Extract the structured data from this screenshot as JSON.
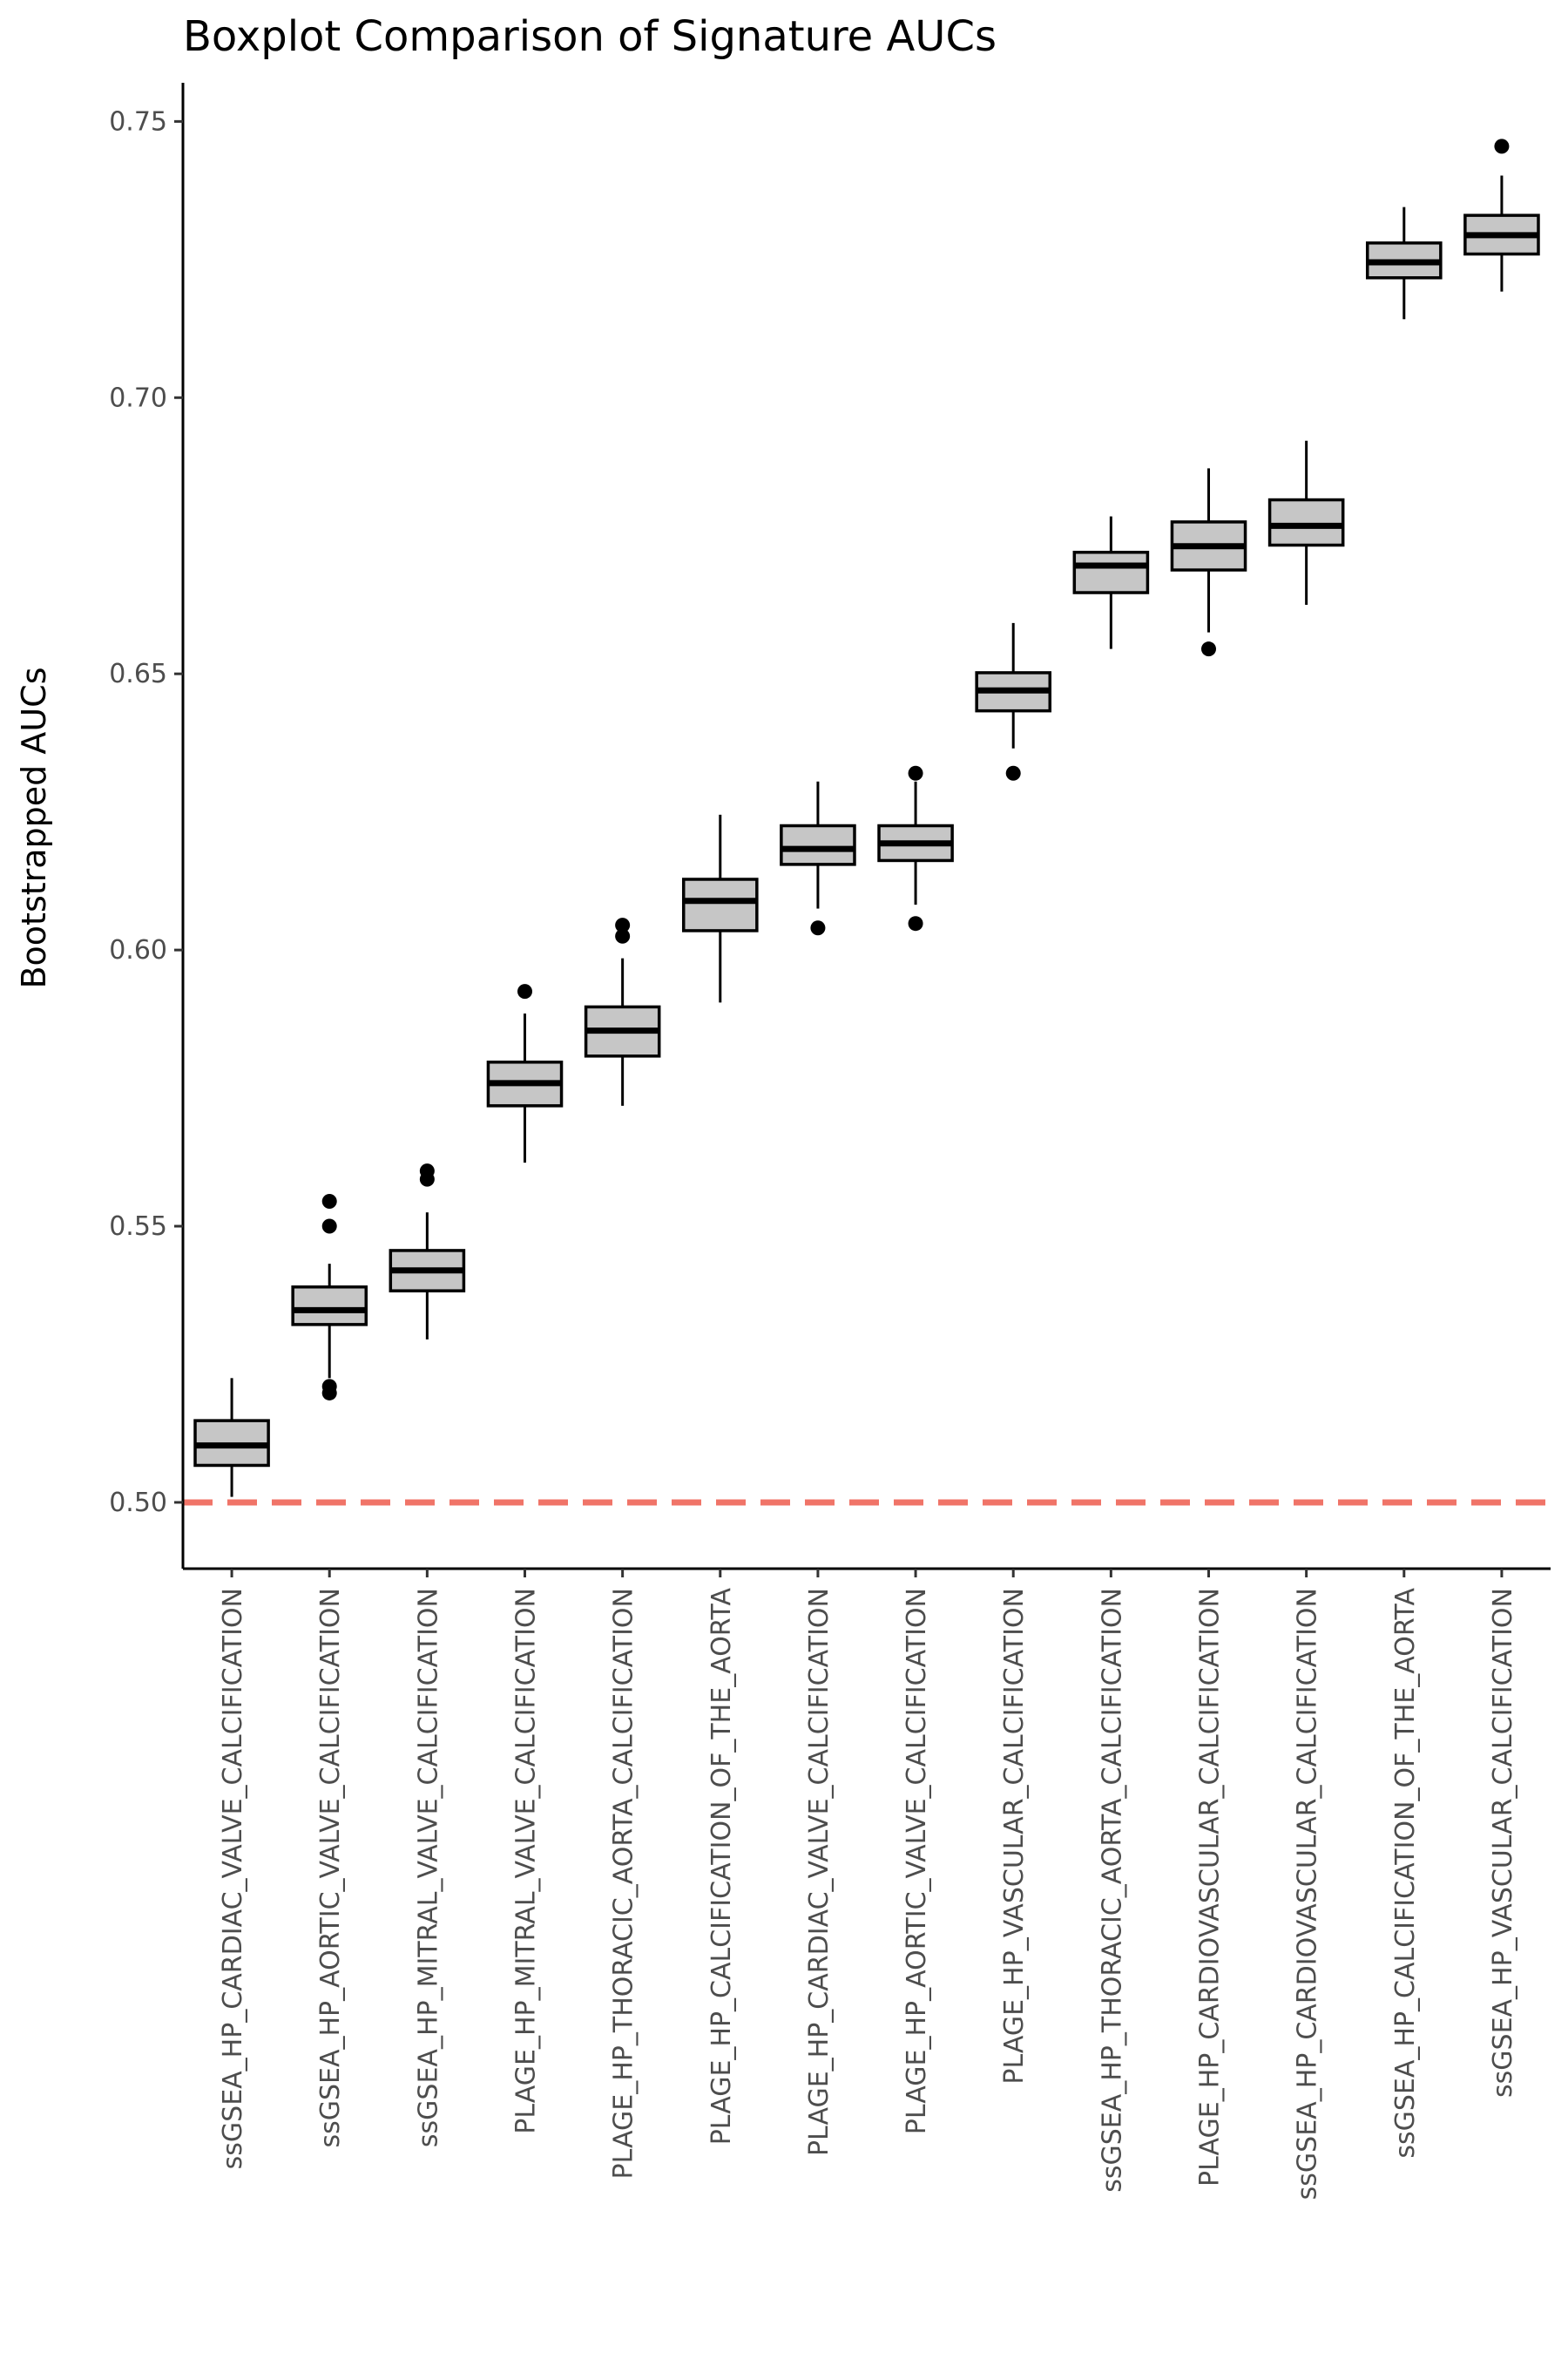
{
  "chart_data": {
    "type": "boxplot",
    "title": "Boxplot Comparison of Signature AUCs",
    "xlabel": "",
    "ylabel": "Bootstrapped AUCs",
    "ylim": [
      0.488,
      0.757
    ],
    "yticks": [
      0.5,
      0.55,
      0.6,
      0.65,
      0.7,
      0.75
    ],
    "ytick_labels": [
      "0.50",
      "0.55",
      "0.60",
      "0.65",
      "0.70",
      "0.75"
    ],
    "grid": false,
    "legend": "none",
    "box_fill": "#c6c6c6",
    "box_stroke": "#000000",
    "reference_line": {
      "y": 0.5,
      "color": "#f07468",
      "style": "dashed"
    },
    "categories": [
      "ssGSEA_HP_CARDIAC_VALVE_CALCIFICATION",
      "ssGSEA_HP_AORTIC_VALVE_CALCIFICATION",
      "ssGSEA_HP_MITRAL_VALVE_CALCIFICATION",
      "PLAGE_HP_MITRAL_VALVE_CALCIFICATION",
      "PLAGE_HP_THORACIC_AORTA_CALCIFICATION",
      "PLAGE_HP_CALCIFICATION_OF_THE_AORTA",
      "PLAGE_HP_CARDIAC_VALVE_CALCIFICATION",
      "PLAGE_HP_AORTIC_VALVE_CALCIFICATION",
      "PLAGE_HP_VASCULAR_CALCIFICATION",
      "ssGSEA_HP_THORACIC_AORTA_CALCIFICATION",
      "PLAGE_HP_CARDIOVASCULAR_CALCIFICATION",
      "ssGSEA_HP_CARDIOVASCULAR_CALCIFICATION",
      "ssGSEA_HP_CALCIFICATION_OF_THE_AORTA",
      "ssGSEA_HP_VASCULAR_CALCIFICATION"
    ],
    "boxes": [
      {
        "min": 0.501,
        "q1": 0.5067,
        "median": 0.5103,
        "q3": 0.5148,
        "max": 0.5225,
        "outliers": []
      },
      {
        "min": 0.5225,
        "q1": 0.5322,
        "median": 0.5348,
        "q3": 0.539,
        "max": 0.5432,
        "outliers": [
          0.5545,
          0.55,
          0.521,
          0.5198
        ]
      },
      {
        "min": 0.5295,
        "q1": 0.5383,
        "median": 0.542,
        "q3": 0.5456,
        "max": 0.5525,
        "outliers": [
          0.56,
          0.5585
        ]
      },
      {
        "min": 0.5615,
        "q1": 0.5718,
        "median": 0.5759,
        "q3": 0.5797,
        "max": 0.5885,
        "outliers": [
          0.5925
        ]
      },
      {
        "min": 0.5718,
        "q1": 0.5808,
        "median": 0.5854,
        "q3": 0.5897,
        "max": 0.5985,
        "outliers": [
          0.6045,
          0.6025
        ]
      },
      {
        "min": 0.5905,
        "q1": 0.6035,
        "median": 0.6089,
        "q3": 0.6128,
        "max": 0.6245,
        "outliers": []
      },
      {
        "min": 0.6075,
        "q1": 0.6155,
        "median": 0.6183,
        "q3": 0.6225,
        "max": 0.6305,
        "outliers": [
          0.604
        ]
      },
      {
        "min": 0.6082,
        "q1": 0.6162,
        "median": 0.6193,
        "q3": 0.6225,
        "max": 0.6305,
        "outliers": [
          0.632,
          0.6048
        ]
      },
      {
        "min": 0.6365,
        "q1": 0.6433,
        "median": 0.647,
        "q3": 0.6502,
        "max": 0.6592,
        "outliers": [
          0.632
        ]
      },
      {
        "min": 0.6545,
        "q1": 0.6647,
        "median": 0.6696,
        "q3": 0.672,
        "max": 0.6785,
        "outliers": []
      },
      {
        "min": 0.6575,
        "q1": 0.6688,
        "median": 0.6731,
        "q3": 0.6775,
        "max": 0.6872,
        "outliers": [
          0.6545
        ]
      },
      {
        "min": 0.6625,
        "q1": 0.6733,
        "median": 0.6768,
        "q3": 0.6815,
        "max": 0.6922,
        "outliers": []
      },
      {
        "min": 0.7142,
        "q1": 0.7217,
        "median": 0.7245,
        "q3": 0.728,
        "max": 0.7345,
        "outliers": []
      },
      {
        "min": 0.7192,
        "q1": 0.726,
        "median": 0.7294,
        "q3": 0.733,
        "max": 0.7402,
        "outliers": [
          0.7455
        ]
      }
    ]
  }
}
